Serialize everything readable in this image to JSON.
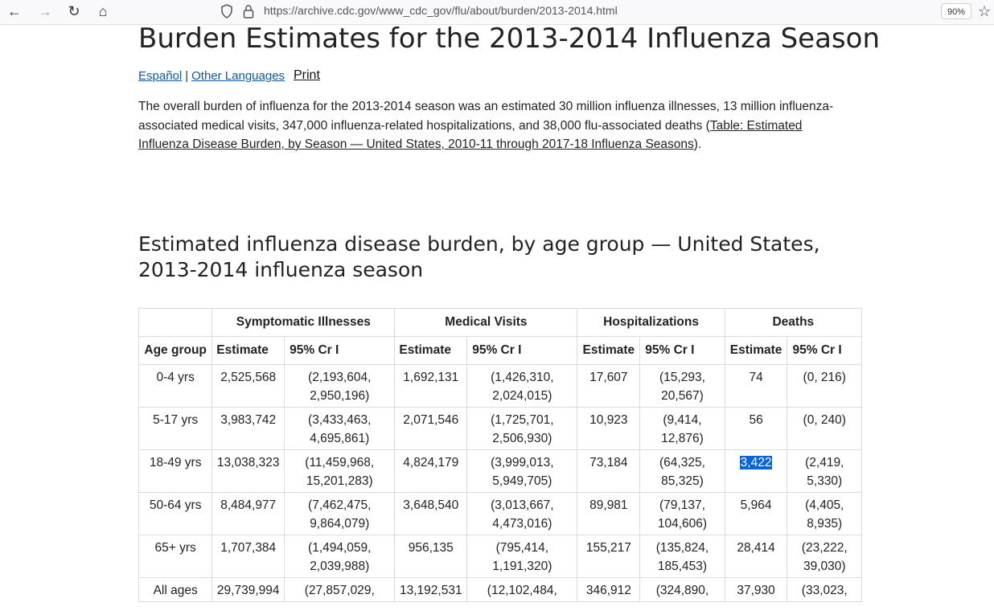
{
  "browser": {
    "url": "https://archive.cdc.gov/www_cdc_gov/flu/about/burden/2013-2014.html",
    "zoom": "90%"
  },
  "page": {
    "title": "Burden Estimates for the 2013-2014 Influenza Season",
    "lang_links": [
      "Español",
      "Other Languages"
    ],
    "separator": "|",
    "print_label": "Print",
    "intro_text": "The overall burden of influenza for the 2013-2014 season was an estimated 30 million influenza illnesses, 13 million influenza-associated medical visits, 347,000 influenza-related hospitalizations, and 38,000 flu-associated deaths (",
    "intro_link": "Table: Estimated Influenza Disease Burden, by Season — United States, 2010-11 through 2017-18 Influenza Seasons",
    "intro_end": ").",
    "table_heading": "Estimated influenza disease burden, by age group — United States, 2013-2014 influenza season"
  },
  "table": {
    "group_headers": [
      "Symptomatic Illnesses",
      "Medical Visits",
      "Hospitalizations",
      "Deaths"
    ],
    "sub_headers": [
      "Age group",
      "Estimate",
      "95% Cr I",
      "Estimate",
      "95% Cr I",
      "Estimate",
      "95% Cr I",
      "Estimate",
      "95% Cr I"
    ],
    "rows": [
      {
        "age": "0-4 yrs",
        "cells": [
          "2,525,568",
          "(2,193,604,\n2,950,196)",
          "1,692,131",
          "(1,426,310,\n2,024,015)",
          "17,607",
          "(15,293,\n20,567)",
          "74",
          "(0, 216)"
        ]
      },
      {
        "age": "5-17 yrs",
        "cells": [
          "3,983,742",
          "(3,433,463,\n4,695,861)",
          "2,071,546",
          "(1,725,701,\n2,506,930)",
          "10,923",
          "(9,414,\n12,876)",
          "56",
          "(0, 240)"
        ]
      },
      {
        "age": "18-49 yrs",
        "cells": [
          "13,038,323",
          "(11,459,968,\n15,201,283)",
          "4,824,179",
          "(3,999,013,\n5,949,705)",
          "73,184",
          "(64,325,\n85,325)",
          "3,422",
          "(2,419,\n5,330)"
        ]
      },
      {
        "age": "50-64 yrs",
        "cells": [
          "8,484,977",
          "(7,462,475,\n9,864,079)",
          "3,648,540",
          "(3,013,667,\n4,473,016)",
          "89,981",
          "(79,137,\n104,606)",
          "5,964",
          "(4,405,\n8,935)"
        ]
      },
      {
        "age": "65+ yrs",
        "cells": [
          "1,707,384",
          "(1,494,059,\n2,039,988)",
          "956,135",
          "(795,414,\n1,191,320)",
          "155,217",
          "(135,824,\n185,453)",
          "28,414",
          "(23,222,\n39,030)"
        ]
      },
      {
        "age": "All ages",
        "cells": [
          "29,739,994",
          "(27,857,029,",
          "13,192,531",
          "(12,102,484,",
          "346,912",
          "(324,890,",
          "37,930",
          "(33,023,"
        ]
      }
    ],
    "highlighted_cell": "3,422"
  }
}
